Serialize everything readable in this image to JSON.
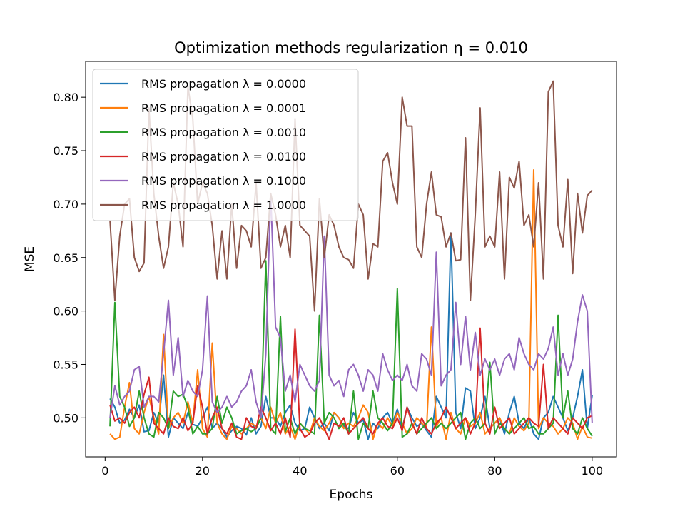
{
  "chart_data": {
    "type": "line",
    "title": "Optimization methods regularization η = 0.010",
    "xlabel": "Epochs",
    "ylabel": "MSE",
    "xlim": [
      -4,
      105
    ],
    "ylim": [
      0.4635,
      0.8335
    ],
    "xticks": [
      0,
      20,
      40,
      60,
      80,
      100
    ],
    "yticks": [
      0.5,
      0.55,
      0.6,
      0.65,
      0.7,
      0.75,
      0.8
    ],
    "xtick_labels": [
      "0",
      "20",
      "40",
      "60",
      "80",
      "100"
    ],
    "ytick_labels": [
      "0.50",
      "0.55",
      "0.60",
      "0.65",
      "0.70",
      "0.75",
      "0.80"
    ],
    "grid": false,
    "legend_position": "top-left",
    "x": [
      1,
      2,
      3,
      4,
      5,
      6,
      7,
      8,
      9,
      10,
      11,
      12,
      13,
      14,
      15,
      16,
      17,
      18,
      19,
      20,
      21,
      22,
      23,
      24,
      25,
      26,
      27,
      28,
      29,
      30,
      31,
      32,
      33,
      34,
      35,
      36,
      37,
      38,
      39,
      40,
      41,
      42,
      43,
      44,
      45,
      46,
      47,
      48,
      49,
      50,
      51,
      52,
      53,
      54,
      55,
      56,
      57,
      58,
      59,
      60,
      61,
      62,
      63,
      64,
      65,
      66,
      67,
      68,
      69,
      70,
      71,
      72,
      73,
      74,
      75,
      76,
      77,
      78,
      79,
      80,
      81,
      82,
      83,
      84,
      85,
      86,
      87,
      88,
      89,
      90,
      91,
      92,
      93,
      94,
      95,
      96,
      97,
      98,
      99,
      100
    ],
    "series": [
      {
        "name": "RMS propagation λ = 0.0000",
        "color": "#1f77b4",
        "values": [
          0.518,
          0.51,
          0.495,
          0.498,
          0.508,
          0.5,
          0.512,
          0.487,
          0.488,
          0.505,
          0.495,
          0.54,
          0.482,
          0.5,
          0.495,
          0.49,
          0.505,
          0.494,
          0.492,
          0.5,
          0.51,
          0.49,
          0.495,
          0.49,
          0.482,
          0.488,
          0.492,
          0.49,
          0.484,
          0.5,
          0.485,
          0.492,
          0.52,
          0.5,
          0.5,
          0.492,
          0.505,
          0.512,
          0.495,
          0.488,
          0.49,
          0.51,
          0.5,
          0.49,
          0.495,
          0.488,
          0.505,
          0.5,
          0.492,
          0.49,
          0.505,
          0.495,
          0.498,
          0.48,
          0.495,
          0.49,
          0.5,
          0.505,
          0.495,
          0.508,
          0.49,
          0.51,
          0.5,
          0.492,
          0.495,
          0.488,
          0.482,
          0.52,
          0.51,
          0.5,
          0.673,
          0.505,
          0.49,
          0.528,
          0.525,
          0.49,
          0.5,
          0.52,
          0.49,
          0.495,
          0.5,
          0.485,
          0.505,
          0.52,
          0.495,
          0.49,
          0.5,
          0.485,
          0.48,
          0.5,
          0.505,
          0.52,
          0.51,
          0.5,
          0.488,
          0.5,
          0.52,
          0.545,
          0.49,
          0.521
        ]
      },
      {
        "name": "RMS propagation λ = 0.0001",
        "color": "#ff7f0e",
        "values": [
          0.485,
          0.48,
          0.482,
          0.51,
          0.533,
          0.49,
          0.485,
          0.505,
          0.52,
          0.5,
          0.485,
          0.578,
          0.49,
          0.5,
          0.505,
          0.495,
          0.515,
          0.495,
          0.545,
          0.49,
          0.482,
          0.57,
          0.495,
          0.485,
          0.48,
          0.492,
          0.49,
          0.485,
          0.49,
          0.495,
          0.492,
          0.5,
          0.49,
          0.51,
          0.495,
          0.505,
          0.485,
          0.492,
          0.48,
          0.495,
          0.49,
          0.485,
          0.5,
          0.492,
          0.488,
          0.495,
          0.505,
          0.5,
          0.49,
          0.495,
          0.492,
          0.5,
          0.512,
          0.505,
          0.48,
          0.495,
          0.49,
          0.5,
          0.492,
          0.505,
          0.495,
          0.485,
          0.49,
          0.5,
          0.495,
          0.49,
          0.585,
          0.492,
          0.5,
          0.48,
          0.505,
          0.49,
          0.485,
          0.5,
          0.492,
          0.495,
          0.505,
          0.485,
          0.49,
          0.495,
          0.5,
          0.49,
          0.485,
          0.5,
          0.492,
          0.488,
          0.495,
          0.732,
          0.49,
          0.5,
          0.495,
          0.492,
          0.485,
          0.49,
          0.5,
          0.495,
          0.48,
          0.492,
          0.482,
          0.481
        ]
      },
      {
        "name": "RMS propagation λ = 0.0010",
        "color": "#2ca02c",
        "values": [
          0.492,
          0.608,
          0.52,
          0.51,
          0.492,
          0.5,
          0.525,
          0.5,
          0.485,
          0.482,
          0.505,
          0.5,
          0.49,
          0.525,
          0.52,
          0.522,
          0.51,
          0.485,
          0.492,
          0.485,
          0.485,
          0.49,
          0.52,
          0.495,
          0.51,
          0.5,
          0.485,
          0.488,
          0.49,
          0.487,
          0.49,
          0.5,
          0.647,
          0.49,
          0.485,
          0.595,
          0.487,
          0.5,
          0.485,
          0.495,
          0.49,
          0.488,
          0.485,
          0.596,
          0.495,
          0.505,
          0.5,
          0.49,
          0.495,
          0.485,
          0.525,
          0.48,
          0.495,
          0.49,
          0.525,
          0.5,
          0.495,
          0.488,
          0.495,
          0.621,
          0.482,
          0.485,
          0.495,
          0.485,
          0.49,
          0.495,
          0.5,
          0.49,
          0.495,
          0.49,
          0.495,
          0.5,
          0.505,
          0.48,
          0.495,
          0.5,
          0.49,
          0.495,
          0.552,
          0.485,
          0.495,
          0.49,
          0.485,
          0.49,
          0.495,
          0.5,
          0.49,
          0.492,
          0.485,
          0.485,
          0.49,
          0.495,
          0.596,
          0.5,
          0.525,
          0.49,
          0.485,
          0.5,
          0.49,
          0.483
        ]
      },
      {
        "name": "RMS propagation λ = 0.0100",
        "color": "#d62728",
        "values": [
          0.512,
          0.497,
          0.5,
          0.495,
          0.505,
          0.51,
          0.5,
          0.522,
          0.538,
          0.495,
          0.49,
          0.485,
          0.5,
          0.492,
          0.49,
          0.5,
          0.488,
          0.495,
          0.53,
          0.51,
          0.485,
          0.5,
          0.51,
          0.49,
          0.485,
          0.495,
          0.482,
          0.48,
          0.5,
          0.492,
          0.49,
          0.51,
          0.5,
          0.488,
          0.495,
          0.485,
          0.5,
          0.482,
          0.583,
          0.49,
          0.482,
          0.485,
          0.495,
          0.5,
          0.49,
          0.48,
          0.495,
          0.492,
          0.5,
          0.485,
          0.49,
          0.495,
          0.5,
          0.49,
          0.485,
          0.495,
          0.5,
          0.492,
          0.49,
          0.5,
          0.488,
          0.51,
          0.495,
          0.485,
          0.5,
          0.49,
          0.485,
          0.495,
          0.5,
          0.51,
          0.5,
          0.49,
          0.495,
          0.5,
          0.485,
          0.495,
          0.584,
          0.495,
          0.485,
          0.51,
          0.49,
          0.495,
          0.5,
          0.485,
          0.49,
          0.495,
          0.5,
          0.495,
          0.492,
          0.55,
          0.49,
          0.5,
          0.495,
          0.49,
          0.485,
          0.5,
          0.495,
          0.49,
          0.5,
          0.502
        ]
      },
      {
        "name": "RMS propagation λ = 0.1000",
        "color": "#9467bd",
        "values": [
          0.5,
          0.53,
          0.512,
          0.52,
          0.525,
          0.545,
          0.548,
          0.51,
          0.52,
          0.52,
          0.515,
          0.56,
          0.61,
          0.54,
          0.575,
          0.52,
          0.535,
          0.525,
          0.52,
          0.545,
          0.614,
          0.515,
          0.505,
          0.51,
          0.52,
          0.51,
          0.515,
          0.525,
          0.53,
          0.545,
          0.515,
          0.5,
          0.56,
          0.71,
          0.585,
          0.575,
          0.525,
          0.54,
          0.515,
          0.55,
          0.54,
          0.53,
          0.525,
          0.535,
          0.67,
          0.54,
          0.53,
          0.535,
          0.52,
          0.545,
          0.55,
          0.54,
          0.525,
          0.545,
          0.54,
          0.525,
          0.56,
          0.545,
          0.535,
          0.54,
          0.535,
          0.55,
          0.53,
          0.525,
          0.56,
          0.555,
          0.54,
          0.655,
          0.53,
          0.54,
          0.545,
          0.608,
          0.55,
          0.595,
          0.545,
          0.58,
          0.54,
          0.555,
          0.545,
          0.555,
          0.54,
          0.555,
          0.56,
          0.545,
          0.575,
          0.56,
          0.55,
          0.545,
          0.56,
          0.555,
          0.565,
          0.585,
          0.54,
          0.56,
          0.54,
          0.555,
          0.59,
          0.615,
          0.6,
          0.495
        ]
      },
      {
        "name": "RMS propagation λ = 1.0000",
        "color": "#8c564b",
        "values": [
          0.685,
          0.61,
          0.67,
          0.7,
          0.705,
          0.65,
          0.637,
          0.645,
          0.79,
          0.71,
          0.67,
          0.64,
          0.66,
          0.72,
          0.7,
          0.66,
          0.81,
          0.78,
          0.7,
          0.72,
          0.71,
          0.68,
          0.63,
          0.675,
          0.63,
          0.7,
          0.64,
          0.68,
          0.675,
          0.66,
          0.72,
          0.64,
          0.65,
          0.71,
          0.69,
          0.66,
          0.68,
          0.65,
          0.78,
          0.68,
          0.675,
          0.67,
          0.6,
          0.705,
          0.65,
          0.69,
          0.68,
          0.66,
          0.65,
          0.648,
          0.64,
          0.7,
          0.69,
          0.63,
          0.663,
          0.66,
          0.74,
          0.748,
          0.72,
          0.7,
          0.8,
          0.773,
          0.773,
          0.66,
          0.65,
          0.7,
          0.73,
          0.69,
          0.688,
          0.66,
          0.673,
          0.647,
          0.648,
          0.762,
          0.61,
          0.69,
          0.79,
          0.66,
          0.67,
          0.66,
          0.73,
          0.63,
          0.725,
          0.715,
          0.74,
          0.68,
          0.69,
          0.66,
          0.72,
          0.63,
          0.805,
          0.815,
          0.68,
          0.66,
          0.723,
          0.635,
          0.71,
          0.673,
          0.708,
          0.713
        ]
      }
    ]
  }
}
